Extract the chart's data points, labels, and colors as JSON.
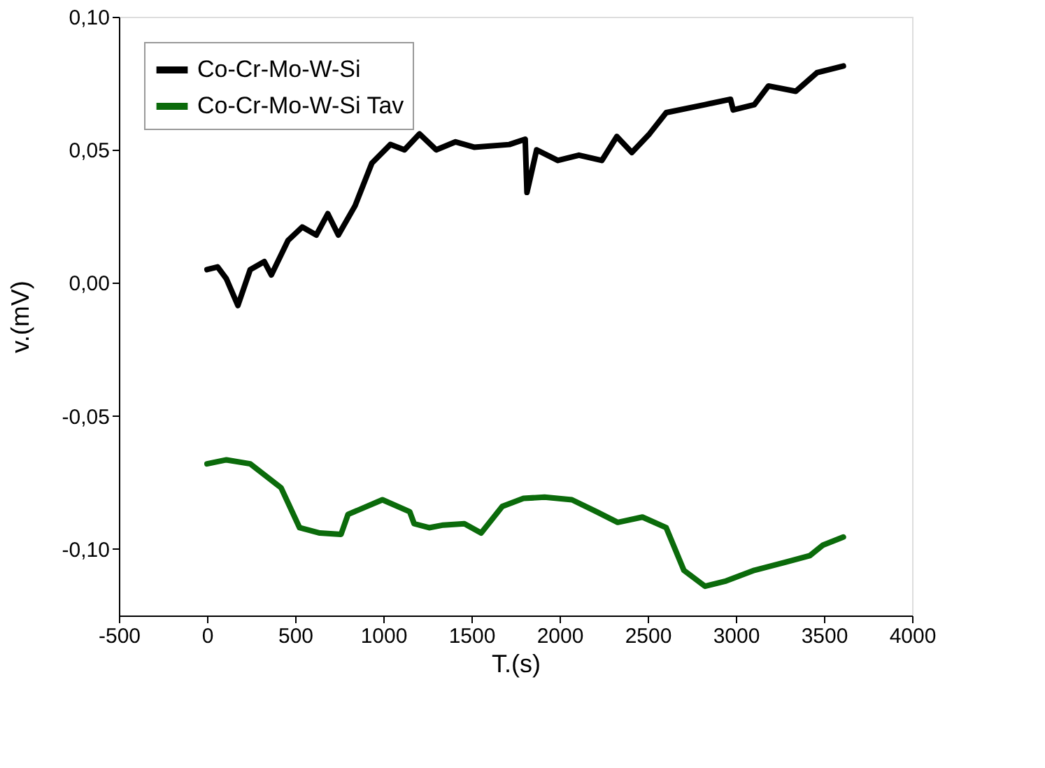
{
  "chart_data": {
    "type": "line",
    "xlabel": "T.(s)",
    "ylabel": "v.(mV)",
    "xlim": [
      -500,
      4000
    ],
    "xticks": [
      -500,
      0,
      500,
      1000,
      1500,
      2000,
      2500,
      3000,
      3500,
      4000
    ],
    "ylim": [
      -0.125,
      0.1
    ],
    "yticks": [
      {
        "value": -0.1,
        "label": "-0,10"
      },
      {
        "value": -0.05,
        "label": "-0,05"
      },
      {
        "value": 0,
        "label": "0,00"
      },
      {
        "value": 0.05,
        "label": "0,05"
      },
      {
        "value": 0.1,
        "label": "0,10"
      }
    ],
    "grid": false,
    "legend": "top left",
    "marker": "none",
    "line_style": "solid",
    "series": [
      {
        "name": "Co-Cr-Mo-W-Si",
        "color": "#000000",
        "x": [
          0,
          60,
          110,
          175,
          245,
          325,
          365,
          460,
          540,
          620,
          685,
          745,
          840,
          935,
          1040,
          1120,
          1205,
          1300,
          1410,
          1515,
          1715,
          1805,
          1815,
          1870,
          1990,
          2110,
          2240,
          2325,
          2410,
          2510,
          2605,
          2825,
          2970,
          2985,
          3105,
          3185,
          3340,
          3460,
          3610
        ],
        "values": [
          0.005,
          0.006,
          0.0015,
          -0.0085,
          0.005,
          0.008,
          0.003,
          0.016,
          0.021,
          0.018,
          0.026,
          0.018,
          0.029,
          0.045,
          0.052,
          0.05,
          0.056,
          0.05,
          0.053,
          0.051,
          0.052,
          0.054,
          0.034,
          0.05,
          0.046,
          0.048,
          0.046,
          0.055,
          0.049,
          0.056,
          0.064,
          0.067,
          0.069,
          0.065,
          0.067,
          0.074,
          0.072,
          0.079,
          0.0815
        ]
      },
      {
        "name": "Co-Cr-Mo-W-Si Tav",
        "color": "#0b6b0b",
        "x": [
          0,
          110,
          245,
          420,
          525,
          640,
          760,
          800,
          995,
          1150,
          1175,
          1260,
          1340,
          1460,
          1555,
          1675,
          1795,
          1915,
          2070,
          2210,
          2330,
          2470,
          2605,
          2705,
          2825,
          2945,
          3105,
          3280,
          3420,
          3495,
          3610
        ],
        "values": [
          -0.068,
          -0.0665,
          -0.068,
          -0.077,
          -0.092,
          -0.094,
          -0.0945,
          -0.087,
          -0.0815,
          -0.086,
          -0.0905,
          -0.092,
          -0.091,
          -0.0905,
          -0.094,
          -0.084,
          -0.081,
          -0.0805,
          -0.0815,
          -0.086,
          -0.09,
          -0.088,
          -0.092,
          -0.108,
          -0.114,
          -0.112,
          -0.108,
          -0.105,
          -0.1025,
          -0.0985,
          -0.0955
        ]
      }
    ]
  }
}
